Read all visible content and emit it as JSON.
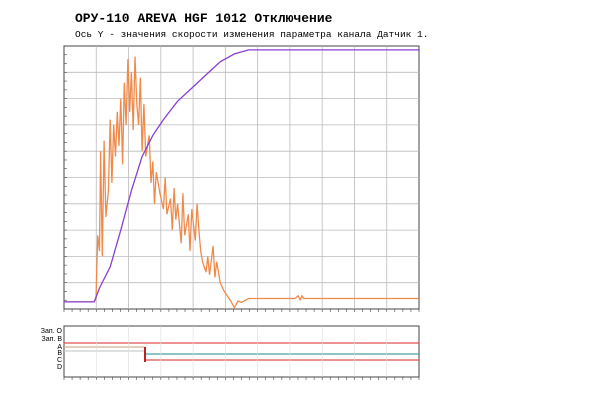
{
  "chart_data": {
    "type": "line",
    "title": "ОРУ-110 AREVA HGF 1012 Отключение",
    "subtitle": "Ось Y - значения скорости изменения параметра канала Датчик 1.",
    "xlim": [
      0,
      100
    ],
    "ylim": [
      0,
      100
    ],
    "grid": true,
    "series": [
      {
        "color": "#f08a4b",
        "x": [
          0,
          8.5,
          9,
          9.5,
          10,
          10.3,
          10.8,
          11.3,
          11.8,
          12.5,
          13,
          13.5,
          14,
          14.5,
          15,
          15.5,
          16,
          16.5,
          17,
          17.5,
          18,
          18.5,
          19,
          19.5,
          20,
          20.5,
          21,
          21.5,
          22,
          22.5,
          23,
          24,
          24.5,
          25,
          25.5,
          26,
          27,
          28,
          28.5,
          29,
          30,
          30.5,
          31,
          31.5,
          32,
          33,
          33.5,
          34,
          35,
          35.5,
          36,
          37,
          37.5,
          38,
          38.5,
          39,
          40,
          40.5,
          41,
          42,
          42.5,
          43,
          44,
          45,
          46,
          47,
          48,
          49,
          50,
          52,
          55,
          60,
          65,
          66,
          66.5,
          67,
          67.5,
          75,
          85,
          100
        ],
        "values": [
          2.7,
          2.7,
          4,
          28,
          22,
          60,
          20,
          64,
          35,
          45,
          72,
          48,
          70,
          58,
          75,
          62,
          80,
          55,
          86,
          70,
          95,
          75,
          90,
          68,
          96,
          78,
          70,
          88,
          60,
          78,
          58,
          66,
          48,
          56,
          40,
          52,
          44,
          38,
          50,
          36,
          42,
          30,
          46,
          34,
          40,
          25,
          44,
          28,
          36,
          22,
          38,
          26,
          40,
          30,
          22,
          18,
          14,
          20,
          13,
          24,
          12,
          18,
          10,
          7,
          5,
          3,
          0.5,
          3,
          2.5,
          4,
          4,
          4,
          4,
          5,
          3.5,
          5,
          4,
          4,
          4,
          4
        ]
      },
      {
        "color": "#8a3fd0",
        "x": [
          0,
          8.5,
          10,
          13,
          16,
          19,
          22,
          25,
          28,
          32,
          36,
          40,
          44,
          48,
          52,
          60,
          100
        ],
        "values": [
          2.7,
          2.7,
          8,
          16,
          30,
          45,
          58,
          66,
          72,
          79,
          84,
          89,
          94,
          97,
          98.5,
          98.5,
          98.5
        ]
      }
    ],
    "digital_labels": [
      "Зап. О",
      "Зап. В",
      "A",
      "B",
      "C",
      "D"
    ]
  }
}
